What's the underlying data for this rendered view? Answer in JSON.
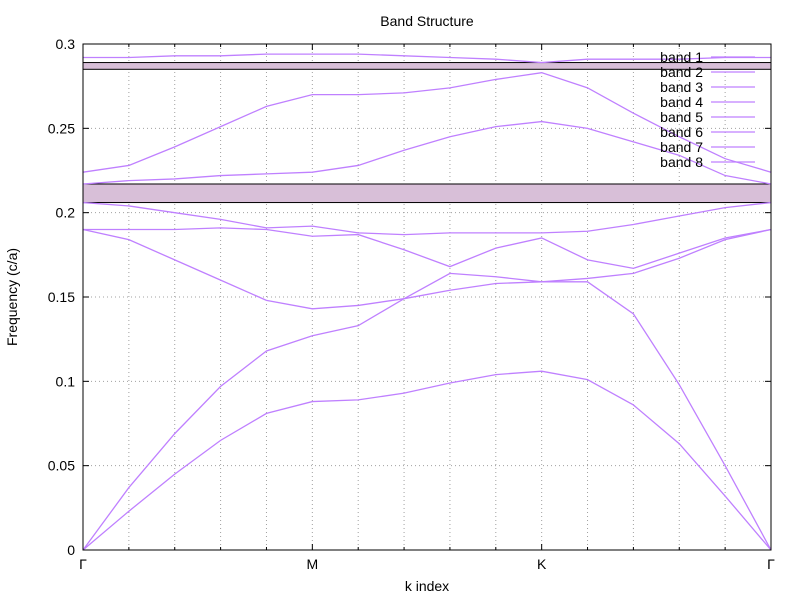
{
  "chart_data": {
    "type": "line",
    "title": "Band Structure",
    "xlabel": "k index",
    "ylabel": "Frequency (c/a)",
    "xlim": [
      0,
      15
    ],
    "ylim": [
      0,
      0.3
    ],
    "yticks": [
      0,
      0.05,
      0.1,
      0.15,
      0.2,
      0.25,
      0.3
    ],
    "ytick_labels": [
      "0",
      "0.05",
      "0.1",
      "0.15",
      "0.2",
      "0.25",
      "0.3"
    ],
    "xticks": [
      0,
      5,
      10,
      15
    ],
    "xtick_labels": [
      "Γ",
      "M",
      "K",
      "Γ"
    ],
    "x_minor_ticks": [
      1,
      2,
      3,
      4,
      6,
      7,
      8,
      9,
      11,
      12,
      13,
      14
    ],
    "grid": true,
    "legend_position": "top-right",
    "line_color": "#bf80ff",
    "gap_fill_color": "#d8bfd8",
    "x": [
      0,
      1,
      2,
      3,
      4,
      5,
      6,
      7,
      8,
      9,
      10,
      11,
      12,
      13,
      14,
      15
    ],
    "series": [
      {
        "name": "band 1",
        "values": [
          0,
          0.023,
          0.045,
          0.065,
          0.081,
          0.088,
          0.089,
          0.093,
          0.099,
          0.104,
          0.106,
          0.101,
          0.086,
          0.063,
          0.032,
          0
        ]
      },
      {
        "name": "band 2",
        "values": [
          0,
          0.037,
          0.069,
          0.097,
          0.118,
          0.127,
          0.133,
          0.149,
          0.164,
          0.162,
          0.159,
          0.159,
          0.14,
          0.098,
          0.05,
          0
        ]
      },
      {
        "name": "band 3",
        "values": [
          0.19,
          0.184,
          0.172,
          0.16,
          0.148,
          0.143,
          0.145,
          0.149,
          0.154,
          0.158,
          0.159,
          0.161,
          0.164,
          0.173,
          0.184,
          0.19
        ]
      },
      {
        "name": "band 4",
        "values": [
          0.19,
          0.19,
          0.19,
          0.191,
          0.19,
          0.186,
          0.187,
          0.178,
          0.168,
          0.179,
          0.185,
          0.172,
          0.167,
          0.176,
          0.185,
          0.19
        ]
      },
      {
        "name": "band 5",
        "values": [
          0.206,
          0.204,
          0.2,
          0.196,
          0.191,
          0.192,
          0.188,
          0.187,
          0.188,
          0.188,
          0.188,
          0.189,
          0.193,
          0.198,
          0.203,
          0.206
        ]
      },
      {
        "name": "band 6",
        "values": [
          0.217,
          0.219,
          0.22,
          0.222,
          0.223,
          0.224,
          0.228,
          0.237,
          0.245,
          0.251,
          0.254,
          0.25,
          0.242,
          0.234,
          0.222,
          0.217
        ]
      },
      {
        "name": "band 7",
        "values": [
          0.224,
          0.228,
          0.239,
          0.251,
          0.263,
          0.27,
          0.27,
          0.271,
          0.274,
          0.279,
          0.283,
          0.274,
          0.259,
          0.245,
          0.232,
          0.224
        ]
      },
      {
        "name": "band 8",
        "values": [
          0.292,
          0.292,
          0.293,
          0.293,
          0.294,
          0.294,
          0.294,
          0.293,
          0.292,
          0.291,
          0.289,
          0.291,
          0.291,
          0.291,
          0.292,
          0.292
        ]
      }
    ],
    "band_gaps": [
      {
        "y0": 0.206,
        "y1": 0.217
      },
      {
        "y0": 0.285,
        "y1": 0.289
      }
    ]
  }
}
